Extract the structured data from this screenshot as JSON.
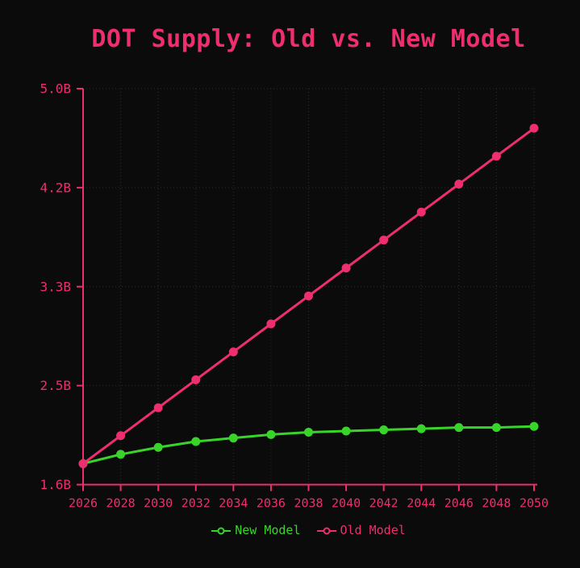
{
  "figure": {
    "background_color": "#0b0b0c",
    "grid_color": "#2d2d2d"
  },
  "chart_data": {
    "type": "line",
    "title": "DOT Supply: Old vs. New Model",
    "title_color": "#ee2e6e",
    "xlabel": "",
    "ylabel": "",
    "x": [
      2026,
      2028,
      2030,
      2032,
      2034,
      2036,
      2038,
      2040,
      2042,
      2044,
      2046,
      2048,
      2050
    ],
    "x_tick_labels": [
      "2026",
      "2028",
      "2030",
      "2032",
      "2034",
      "2036",
      "2038",
      "2040",
      "2042",
      "2044",
      "2046",
      "2048",
      "2050"
    ],
    "y_tick_labels": [
      "1.6B",
      "2.5B",
      "3.3B",
      "4.2B",
      "5.0B"
    ],
    "ylim": [
      1.6,
      5.0
    ],
    "axis_color": "#ee2e6e",
    "tick_label_color": "#ee2e6e",
    "grid": "dotted",
    "legend_position": "bottom",
    "series": [
      {
        "name": "New Model",
        "color": "#39d42a",
        "values": [
          1.78,
          1.86,
          1.92,
          1.97,
          2.0,
          2.03,
          2.05,
          2.06,
          2.07,
          2.08,
          2.09,
          2.09,
          2.1
        ]
      },
      {
        "name": "Old Model",
        "color": "#ee2e6e",
        "values": [
          1.78,
          2.02,
          2.26,
          2.5,
          2.74,
          2.98,
          3.22,
          3.46,
          3.7,
          3.94,
          4.18,
          4.42,
          4.66
        ]
      }
    ]
  }
}
